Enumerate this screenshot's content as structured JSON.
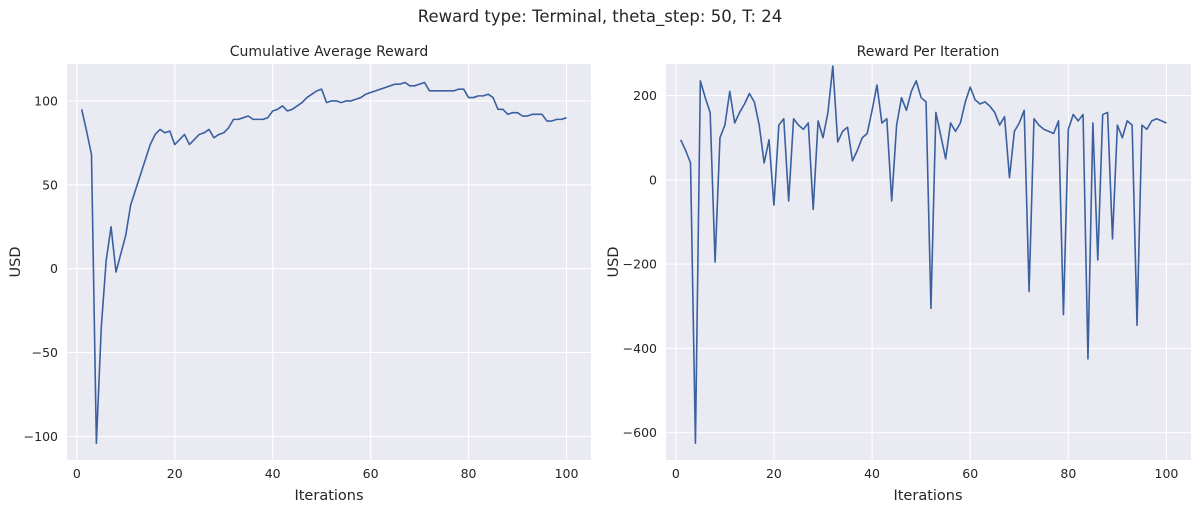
{
  "figure_title": "Reward type: Terminal, theta_step: 50, T: 24",
  "chart_data": [
    {
      "type": "line",
      "title": "Cumulative Average Reward",
      "xlabel": "Iterations",
      "ylabel": "USD",
      "xlim": [
        -2,
        105
      ],
      "ylim": [
        -114,
        122
      ],
      "xticks": [
        0,
        20,
        40,
        60,
        80,
        100
      ],
      "yticks": [
        -100,
        -50,
        0,
        50,
        100
      ],
      "grid": true,
      "legend": "none",
      "series": [
        {
          "color": "#3a60a0",
          "x": [
            1,
            2,
            3,
            4,
            5,
            6,
            7,
            8,
            9,
            10,
            11,
            12,
            13,
            14,
            15,
            16,
            17,
            18,
            19,
            20,
            21,
            22,
            23,
            24,
            25,
            26,
            27,
            28,
            29,
            30,
            31,
            32,
            33,
            34,
            35,
            36,
            37,
            38,
            39,
            40,
            41,
            42,
            43,
            44,
            45,
            46,
            47,
            48,
            49,
            50,
            51,
            52,
            53,
            54,
            55,
            56,
            57,
            58,
            59,
            60,
            61,
            62,
            63,
            64,
            65,
            66,
            67,
            68,
            69,
            70,
            71,
            72,
            73,
            74,
            75,
            76,
            77,
            78,
            79,
            80,
            81,
            82,
            83,
            84,
            85,
            86,
            87,
            88,
            89,
            90,
            91,
            92,
            93,
            94,
            95,
            96,
            97,
            98,
            99,
            100
          ],
          "y": [
            95,
            82,
            68,
            -104,
            -35,
            5,
            25,
            -2,
            9,
            20,
            38,
            47,
            56,
            65,
            74,
            80,
            83,
            81,
            82,
            74,
            77,
            80,
            74,
            77,
            80,
            81,
            83,
            78,
            80,
            81,
            84,
            89,
            89,
            90,
            91,
            89,
            89,
            89,
            90,
            94,
            95,
            97,
            94,
            95,
            97,
            99,
            102,
            104,
            106,
            107,
            99,
            100,
            100,
            99,
            100,
            100,
            101,
            102,
            104,
            105,
            106,
            107,
            108,
            109,
            110,
            110,
            111,
            109,
            109,
            110,
            111,
            106,
            106,
            106,
            106,
            106,
            106,
            107,
            107,
            102,
            102,
            103,
            103,
            104,
            102,
            95,
            95,
            92,
            93,
            93,
            91,
            91,
            92,
            92,
            92,
            88,
            88,
            89,
            89,
            90
          ]
        }
      ]
    },
    {
      "type": "line",
      "title": "Reward Per Iteration",
      "xlabel": "Iterations",
      "ylabel": "USD",
      "xlim": [
        -2,
        105
      ],
      "ylim": [
        -665,
        275
      ],
      "xticks": [
        0,
        20,
        40,
        60,
        80,
        100
      ],
      "yticks": [
        -600,
        -400,
        -200,
        0,
        200
      ],
      "grid": true,
      "legend": "none",
      "series": [
        {
          "color": "#3a60a0",
          "x": [
            1,
            2,
            3,
            4,
            5,
            6,
            7,
            8,
            9,
            10,
            11,
            12,
            13,
            14,
            15,
            16,
            17,
            18,
            19,
            20,
            21,
            22,
            23,
            24,
            25,
            26,
            27,
            28,
            29,
            30,
            31,
            32,
            33,
            34,
            35,
            36,
            37,
            38,
            39,
            40,
            41,
            42,
            43,
            44,
            45,
            46,
            47,
            48,
            49,
            50,
            51,
            52,
            53,
            54,
            55,
            56,
            57,
            58,
            59,
            60,
            61,
            62,
            63,
            64,
            65,
            66,
            67,
            68,
            69,
            70,
            71,
            72,
            73,
            74,
            75,
            76,
            77,
            78,
            79,
            80,
            81,
            82,
            83,
            84,
            85,
            86,
            87,
            88,
            89,
            90,
            91,
            92,
            93,
            94,
            95,
            96,
            97,
            98,
            99,
            100
          ],
          "y": [
            95,
            70,
            40,
            -625,
            235,
            195,
            160,
            -195,
            100,
            130,
            210,
            135,
            160,
            180,
            205,
            185,
            130,
            40,
            95,
            -60,
            130,
            145,
            -50,
            145,
            130,
            120,
            135,
            -70,
            140,
            100,
            160,
            270,
            90,
            115,
            125,
            45,
            70,
            100,
            110,
            165,
            225,
            135,
            145,
            -50,
            130,
            195,
            165,
            210,
            235,
            195,
            185,
            -305,
            160,
            105,
            50,
            135,
            115,
            135,
            185,
            220,
            190,
            180,
            185,
            175,
            160,
            130,
            150,
            5,
            115,
            135,
            165,
            -265,
            145,
            130,
            120,
            115,
            110,
            140,
            -320,
            120,
            155,
            140,
            155,
            -425,
            135,
            -190,
            155,
            160,
            -140,
            130,
            100,
            140,
            130,
            -345,
            130,
            120,
            140,
            145,
            140,
            135
          ]
        }
      ]
    }
  ]
}
